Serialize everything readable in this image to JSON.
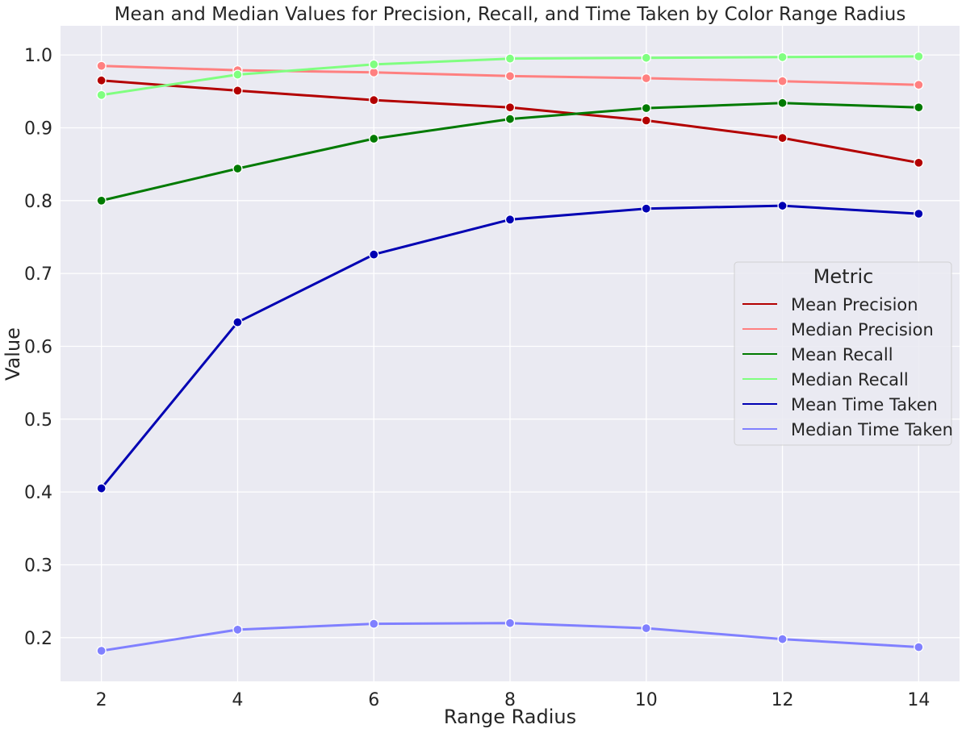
{
  "chart_data": {
    "type": "line",
    "title": "Mean and Median Values for Precision, Recall, and Time Taken by Color Range Radius",
    "xlabel": "Range Radius",
    "ylabel": "Value",
    "x": [
      2,
      4,
      6,
      8,
      10,
      12,
      14
    ],
    "xlim": [
      1.4,
      14.6
    ],
    "ylim": [
      0.14,
      1.04
    ],
    "xticks": [
      2,
      4,
      6,
      8,
      10,
      12,
      14
    ],
    "yticks": [
      0.2,
      0.3,
      0.4,
      0.5,
      0.6,
      0.7,
      0.8,
      0.9,
      1.0
    ],
    "ytick_labels": [
      "0.2",
      "0.3",
      "0.4",
      "0.5",
      "0.6",
      "0.7",
      "0.8",
      "0.9",
      "1.0"
    ],
    "grid": true,
    "background": "#eaeaf2",
    "grid_color": "#ffffff",
    "legend": {
      "title": "Metric",
      "placement": "center-right"
    },
    "series": [
      {
        "name": "Mean Precision",
        "color": "#b30000",
        "values": [
          0.965,
          0.951,
          0.938,
          0.928,
          0.91,
          0.886,
          0.852
        ]
      },
      {
        "name": "Median Precision",
        "color": "#ff8080",
        "values": [
          0.985,
          0.979,
          0.976,
          0.971,
          0.968,
          0.964,
          0.959
        ]
      },
      {
        "name": "Mean Recall",
        "color": "#007a00",
        "values": [
          0.8,
          0.844,
          0.885,
          0.912,
          0.927,
          0.934,
          0.928
        ]
      },
      {
        "name": "Median Recall",
        "color": "#80ff80",
        "values": [
          0.945,
          0.973,
          0.987,
          0.995,
          0.996,
          0.997,
          0.998
        ]
      },
      {
        "name": "Mean Time Taken",
        "color": "#0000b3",
        "values": [
          0.405,
          0.633,
          0.726,
          0.774,
          0.789,
          0.793,
          0.782
        ]
      },
      {
        "name": "Median Time Taken",
        "color": "#8080ff",
        "values": [
          0.182,
          0.211,
          0.219,
          0.22,
          0.213,
          0.198,
          0.187
        ]
      }
    ]
  }
}
